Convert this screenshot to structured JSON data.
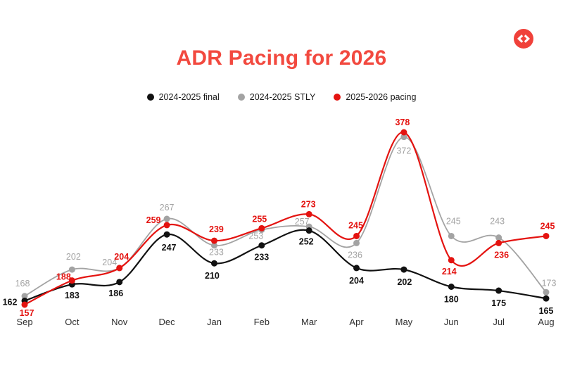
{
  "page": {
    "background": "#ffffff"
  },
  "brand": {
    "icon": "code-brackets-badge",
    "color": "#f0413a",
    "glyph_color": "#ffffff"
  },
  "header": {
    "title": "ADR Pacing for 2026",
    "color": "#f2493f"
  },
  "chart_data": {
    "type": "line",
    "title": "ADR Pacing for 2026",
    "categories": [
      "Sep",
      "Oct",
      "Nov",
      "Dec",
      "Jan",
      "Feb",
      "Mar",
      "Apr",
      "May",
      "Jun",
      "Jul",
      "Aug"
    ],
    "series": [
      {
        "name": "2024-2025 final",
        "color": "#111111",
        "values": [
          162,
          183,
          186,
          247,
          210,
          233,
          252,
          204,
          202,
          180,
          175,
          165
        ]
      },
      {
        "name": "2024-2025 STLY",
        "color": "#a3a3a3",
        "values": [
          168,
          202,
          204,
          267,
          233,
          253,
          257,
          236,
          372,
          245,
          243,
          173
        ]
      },
      {
        "name": "2025-2026 pacing",
        "color": "#e41310",
        "values": [
          157,
          188,
          204,
          259,
          239,
          255,
          273,
          245,
          378,
          214,
          236,
          245
        ]
      }
    ],
    "options": {
      "smooth": true,
      "grid": false,
      "y_axis_visible": false,
      "x_axis_labels_visible": true,
      "point_labels": true,
      "legend_position": "top-center",
      "ylim": [
        150,
        390
      ]
    }
  }
}
